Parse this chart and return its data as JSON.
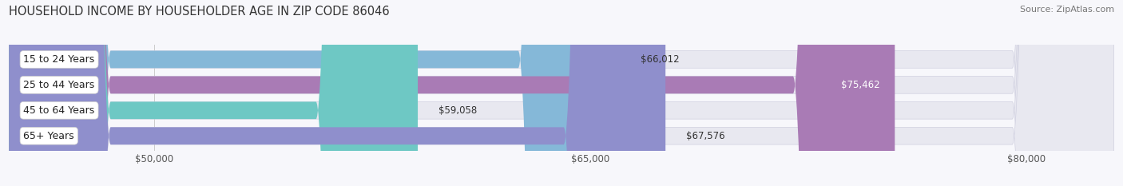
{
  "title": "HOUSEHOLD INCOME BY HOUSEHOLDER AGE IN ZIP CODE 86046",
  "source": "Source: ZipAtlas.com",
  "categories": [
    "15 to 24 Years",
    "25 to 44 Years",
    "45 to 64 Years",
    "65+ Years"
  ],
  "values": [
    66012,
    75462,
    59058,
    67576
  ],
  "bar_colors": [
    "#85b8d8",
    "#a97bb5",
    "#6ec8c4",
    "#8f8fcc"
  ],
  "bar_bg_color": "#e8e8f0",
  "value_labels": [
    "$66,012",
    "$75,462",
    "$59,058",
    "$67,576"
  ],
  "value_label_inside": [
    false,
    true,
    false,
    false
  ],
  "xlim_min": 45000,
  "xlim_max": 83000,
  "xticks": [
    50000,
    65000,
    80000
  ],
  "xtick_labels": [
    "$50,000",
    "$65,000",
    "$80,000"
  ],
  "background_color": "#f7f7fb",
  "title_fontsize": 10.5,
  "source_fontsize": 8,
  "label_fontsize": 9,
  "value_fontsize": 8.5,
  "tick_fontsize": 8.5
}
